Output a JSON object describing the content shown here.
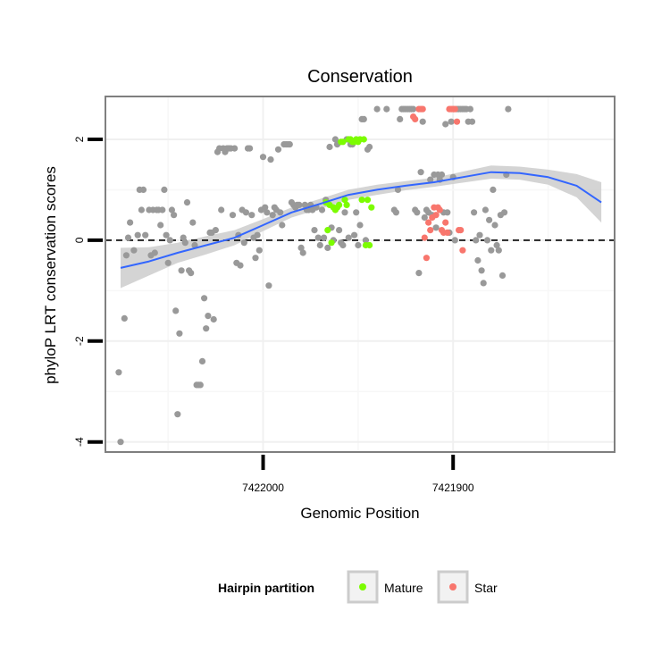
{
  "chart_data": {
    "type": "scatter",
    "title": "Conservation",
    "xlabel": "Genomic Position",
    "ylabel": "phyloP LRT conservation scores",
    "x_reversed": true,
    "xlim": [
      7422083,
      7421815
    ],
    "ylim": [
      -4.2,
      2.85
    ],
    "x_ticks": [
      7422000,
      7421900
    ],
    "x_tick_labels": [
      "7422000",
      "7421900"
    ],
    "y_ticks": [
      -4,
      -2,
      0,
      2
    ],
    "y_tick_labels": [
      "-4",
      "-2",
      "0",
      "2"
    ],
    "reference_line": {
      "y": 0,
      "style": "dashed"
    },
    "smooth": {
      "color": "#3366FF",
      "band_color": "#CCCCCC",
      "x": [
        7422075,
        7422060,
        7422045,
        7422030,
        7422015,
        7422000,
        7421985,
        7421970,
        7421955,
        7421940,
        7421925,
        7421910,
        7421895,
        7421880,
        7421865,
        7421850,
        7421835,
        7421822
      ],
      "y": [
        -0.55,
        -0.42,
        -0.25,
        -0.1,
        0.05,
        0.3,
        0.55,
        0.72,
        0.9,
        1.0,
        1.08,
        1.15,
        1.25,
        1.35,
        1.33,
        1.25,
        1.08,
        0.75
      ],
      "ymin": [
        -0.95,
        -0.7,
        -0.45,
        -0.28,
        -0.1,
        0.18,
        0.45,
        0.62,
        0.8,
        0.9,
        0.99,
        1.06,
        1.14,
        1.22,
        1.2,
        1.1,
        0.85,
        0.35
      ],
      "ymax": [
        -0.15,
        -0.14,
        -0.05,
        0.08,
        0.2,
        0.42,
        0.65,
        0.82,
        1.0,
        1.1,
        1.17,
        1.24,
        1.36,
        1.48,
        1.46,
        1.4,
        1.31,
        1.15
      ]
    },
    "legend": {
      "title": "Hairpin partition",
      "placement": "bottom",
      "entries": [
        {
          "label": "Mature",
          "color": "#7CFC00"
        },
        {
          "label": "Star",
          "color": "#F8766D"
        }
      ]
    },
    "series": [
      {
        "role": "other",
        "color": "#999999",
        "points": [
          [
            7422076,
            -2.62
          ],
          [
            7422075,
            -4.0
          ],
          [
            7422073,
            -1.55
          ],
          [
            7422072,
            -0.3
          ],
          [
            7422071,
            0.05
          ],
          [
            7422070,
            0.35
          ],
          [
            7422068,
            -0.2
          ],
          [
            7422066,
            0.1
          ],
          [
            7422065,
            1.0
          ],
          [
            7422064,
            0.6
          ],
          [
            7422063,
            1.0
          ],
          [
            7422062,
            0.1
          ],
          [
            7422060,
            0.6
          ],
          [
            7422059,
            -0.3
          ],
          [
            7422058,
            0.6
          ],
          [
            7422057,
            -0.25
          ],
          [
            7422056,
            0.6
          ],
          [
            7422055,
            0.6
          ],
          [
            7422054,
            0.3
          ],
          [
            7422053,
            0.6
          ],
          [
            7422052,
            1.0
          ],
          [
            7422051,
            0.1
          ],
          [
            7422050,
            -0.45
          ],
          [
            7422049,
            0.0
          ],
          [
            7422048,
            0.6
          ],
          [
            7422047,
            0.5
          ],
          [
            7422046,
            -1.4
          ],
          [
            7422045,
            -3.45
          ],
          [
            7422044,
            -1.85
          ],
          [
            7422043,
            -0.6
          ],
          [
            7422042,
            0.05
          ],
          [
            7422041,
            -0.05
          ],
          [
            7422040,
            0.75
          ],
          [
            7422039,
            -0.6
          ],
          [
            7422038,
            -0.65
          ],
          [
            7422037,
            0.35
          ],
          [
            7422036,
            -0.1
          ],
          [
            7422035,
            -2.87
          ],
          [
            7422034,
            -2.87
          ],
          [
            7422033,
            -2.87
          ],
          [
            7422032,
            -2.4
          ],
          [
            7422031,
            -1.15
          ],
          [
            7422030,
            -1.75
          ],
          [
            7422029,
            -1.5
          ],
          [
            7422028,
            0.15
          ],
          [
            7422027,
            0.15
          ],
          [
            7422026,
            -1.57
          ],
          [
            7422025,
            0.2
          ],
          [
            7422024,
            1.75
          ],
          [
            7422023,
            1.82
          ],
          [
            7422022,
            0.6
          ],
          [
            7422021,
            1.82
          ],
          [
            7422020,
            1.75
          ],
          [
            7422019,
            1.82
          ],
          [
            7422018,
            1.82
          ],
          [
            7422017,
            1.82
          ],
          [
            7422016,
            0.5
          ],
          [
            7422015,
            1.82
          ],
          [
            7422014,
            -0.45
          ],
          [
            7422013,
            0.1
          ],
          [
            7422012,
            -0.5
          ],
          [
            7422011,
            0.6
          ],
          [
            7422010,
            -0.05
          ],
          [
            7422009,
            0.55
          ],
          [
            7422008,
            1.82
          ],
          [
            7422007,
            1.82
          ],
          [
            7422006,
            0.5
          ],
          [
            7422005,
            0.05
          ],
          [
            7422004,
            -0.35
          ],
          [
            7422003,
            0.1
          ],
          [
            7422002,
            -0.2
          ],
          [
            7422001,
            0.6
          ],
          [
            7422000,
            1.65
          ],
          [
            7421999,
            0.65
          ],
          [
            7421998,
            0.55
          ],
          [
            7421997,
            -0.9
          ],
          [
            7421996,
            1.6
          ],
          [
            7421995,
            0.5
          ],
          [
            7421994,
            0.65
          ],
          [
            7421993,
            0.6
          ],
          [
            7421992,
            1.8
          ],
          [
            7421991,
            0.55
          ],
          [
            7421990,
            0.3
          ],
          [
            7421989,
            1.9
          ],
          [
            7421988,
            1.9
          ],
          [
            7421987,
            1.9
          ],
          [
            7421986,
            1.9
          ],
          [
            7421985,
            0.75
          ],
          [
            7421984,
            0.7
          ],
          [
            7421983,
            0.65
          ],
          [
            7421982,
            0.7
          ],
          [
            7421981,
            0.7
          ],
          [
            7421980,
            -0.15
          ],
          [
            7421979,
            -0.25
          ],
          [
            7421978,
            0.7
          ],
          [
            7421977,
            0.6
          ],
          [
            7421976,
            0.6
          ],
          [
            7421975,
            0.7
          ],
          [
            7421974,
            0.6
          ],
          [
            7421973,
            0.2
          ],
          [
            7421972,
            0.65
          ],
          [
            7421971,
            0.05
          ],
          [
            7421970,
            -0.1
          ],
          [
            7421969,
            0.6
          ],
          [
            7421968,
            0.05
          ],
          [
            7421967,
            0.8
          ],
          [
            7421966,
            -0.15
          ],
          [
            7421965,
            1.85
          ],
          [
            7421964,
            0.25
          ],
          [
            7421963,
            0.0
          ],
          [
            7421962,
            2.0
          ],
          [
            7421961,
            1.9
          ],
          [
            7421960,
            0.2
          ],
          [
            7421959,
            -0.05
          ],
          [
            7421958,
            -0.1
          ],
          [
            7421957,
            0.55
          ],
          [
            7421956,
            2.0
          ],
          [
            7421955,
            0.05
          ],
          [
            7421954,
            1.9
          ],
          [
            7421953,
            1.9
          ],
          [
            7421952,
            0.1
          ],
          [
            7421951,
            0.55
          ],
          [
            7421950,
            -0.1
          ],
          [
            7421949,
            0.3
          ],
          [
            7421948,
            2.4
          ],
          [
            7421947,
            2.4
          ],
          [
            7421946,
            0.0
          ],
          [
            7421945,
            1.8
          ],
          [
            7421944,
            1.85
          ],
          [
            7421940,
            2.6
          ],
          [
            7421935,
            2.6
          ],
          [
            7421931,
            0.6
          ],
          [
            7421930,
            0.55
          ],
          [
            7421929,
            1.0
          ],
          [
            7421928,
            2.4
          ],
          [
            7421927,
            2.6
          ],
          [
            7421926,
            2.6
          ],
          [
            7421925,
            2.6
          ],
          [
            7421924,
            2.6
          ],
          [
            7421923,
            2.6
          ],
          [
            7421922,
            2.6
          ],
          [
            7421921,
            2.6
          ],
          [
            7421920,
            0.6
          ],
          [
            7421919,
            0.55
          ],
          [
            7421918,
            -0.65
          ],
          [
            7421917,
            1.35
          ],
          [
            7421916,
            2.35
          ],
          [
            7421915,
            0.45
          ],
          [
            7421914,
            0.6
          ],
          [
            7421913,
            0.55
          ],
          [
            7421912,
            1.2
          ],
          [
            7421911,
            0.5
          ],
          [
            7421910,
            1.3
          ],
          [
            7421909,
            0.25
          ],
          [
            7421908,
            1.3
          ],
          [
            7421907,
            1.2
          ],
          [
            7421906,
            1.3
          ],
          [
            7421905,
            0.55
          ],
          [
            7421904,
            2.3
          ],
          [
            7421903,
            0.55
          ],
          [
            7421902,
            0.15
          ],
          [
            7421901,
            2.35
          ],
          [
            7421900,
            1.25
          ],
          [
            7421899,
            0.0
          ],
          [
            7421898,
            2.6
          ],
          [
            7421897,
            2.6
          ],
          [
            7421896,
            2.6
          ],
          [
            7421895,
            2.6
          ],
          [
            7421894,
            2.6
          ],
          [
            7421893,
            2.6
          ],
          [
            7421892,
            2.35
          ],
          [
            7421891,
            2.6
          ],
          [
            7421890,
            2.35
          ],
          [
            7421889,
            0.55
          ],
          [
            7421888,
            0.0
          ],
          [
            7421887,
            -0.4
          ],
          [
            7421886,
            0.1
          ],
          [
            7421885,
            -0.6
          ],
          [
            7421884,
            -0.85
          ],
          [
            7421883,
            0.6
          ],
          [
            7421882,
            0.0
          ],
          [
            7421881,
            0.4
          ],
          [
            7421880,
            -0.2
          ],
          [
            7421879,
            1.0
          ],
          [
            7421878,
            0.3
          ],
          [
            7421877,
            -0.1
          ],
          [
            7421876,
            -0.2
          ],
          [
            7421875,
            0.5
          ],
          [
            7421874,
            -0.7
          ],
          [
            7421873,
            0.55
          ],
          [
            7421872,
            1.3
          ],
          [
            7421871,
            2.6
          ]
        ]
      },
      {
        "role": "Mature",
        "color": "#7CFC00",
        "points": [
          [
            7421967,
            0.75
          ],
          [
            7421966,
            0.2
          ],
          [
            7421965,
            0.7
          ],
          [
            7421964,
            -0.05
          ],
          [
            7421963,
            0.65
          ],
          [
            7421962,
            0.6
          ],
          [
            7421961,
            0.65
          ],
          [
            7421960,
            0.7
          ],
          [
            7421959,
            1.95
          ],
          [
            7421958,
            1.95
          ],
          [
            7421957,
            0.8
          ],
          [
            7421956,
            0.7
          ],
          [
            7421955,
            2.0
          ],
          [
            7421954,
            2.0
          ],
          [
            7421953,
            1.95
          ],
          [
            7421952,
            1.95
          ],
          [
            7421951,
            2.0
          ],
          [
            7421950,
            1.95
          ],
          [
            7421949,
            2.0
          ],
          [
            7421948,
            0.8
          ],
          [
            7421947,
            2.0
          ],
          [
            7421946,
            -0.1
          ],
          [
            7421945,
            0.8
          ],
          [
            7421944,
            -0.1
          ],
          [
            7421943,
            0.65
          ]
        ]
      },
      {
        "role": "Star",
        "color": "#F8766D",
        "points": [
          [
            7421921,
            2.45
          ],
          [
            7421920,
            2.4
          ],
          [
            7421918,
            2.6
          ],
          [
            7421917,
            2.6
          ],
          [
            7421916,
            2.6
          ],
          [
            7421915,
            0.05
          ],
          [
            7421914,
            -0.35
          ],
          [
            7421913,
            0.35
          ],
          [
            7421912,
            0.2
          ],
          [
            7421911,
            0.45
          ],
          [
            7421910,
            0.65
          ],
          [
            7421909,
            0.5
          ],
          [
            7421908,
            0.65
          ],
          [
            7421907,
            0.6
          ],
          [
            7421906,
            0.2
          ],
          [
            7421905,
            0.15
          ],
          [
            7421904,
            0.35
          ],
          [
            7421903,
            0.15
          ],
          [
            7421902,
            2.6
          ],
          [
            7421901,
            2.6
          ],
          [
            7421900,
            2.6
          ],
          [
            7421899,
            2.6
          ],
          [
            7421898,
            2.35
          ],
          [
            7421897,
            0.2
          ],
          [
            7421896,
            0.2
          ],
          [
            7421895,
            -0.2
          ]
        ]
      }
    ]
  }
}
